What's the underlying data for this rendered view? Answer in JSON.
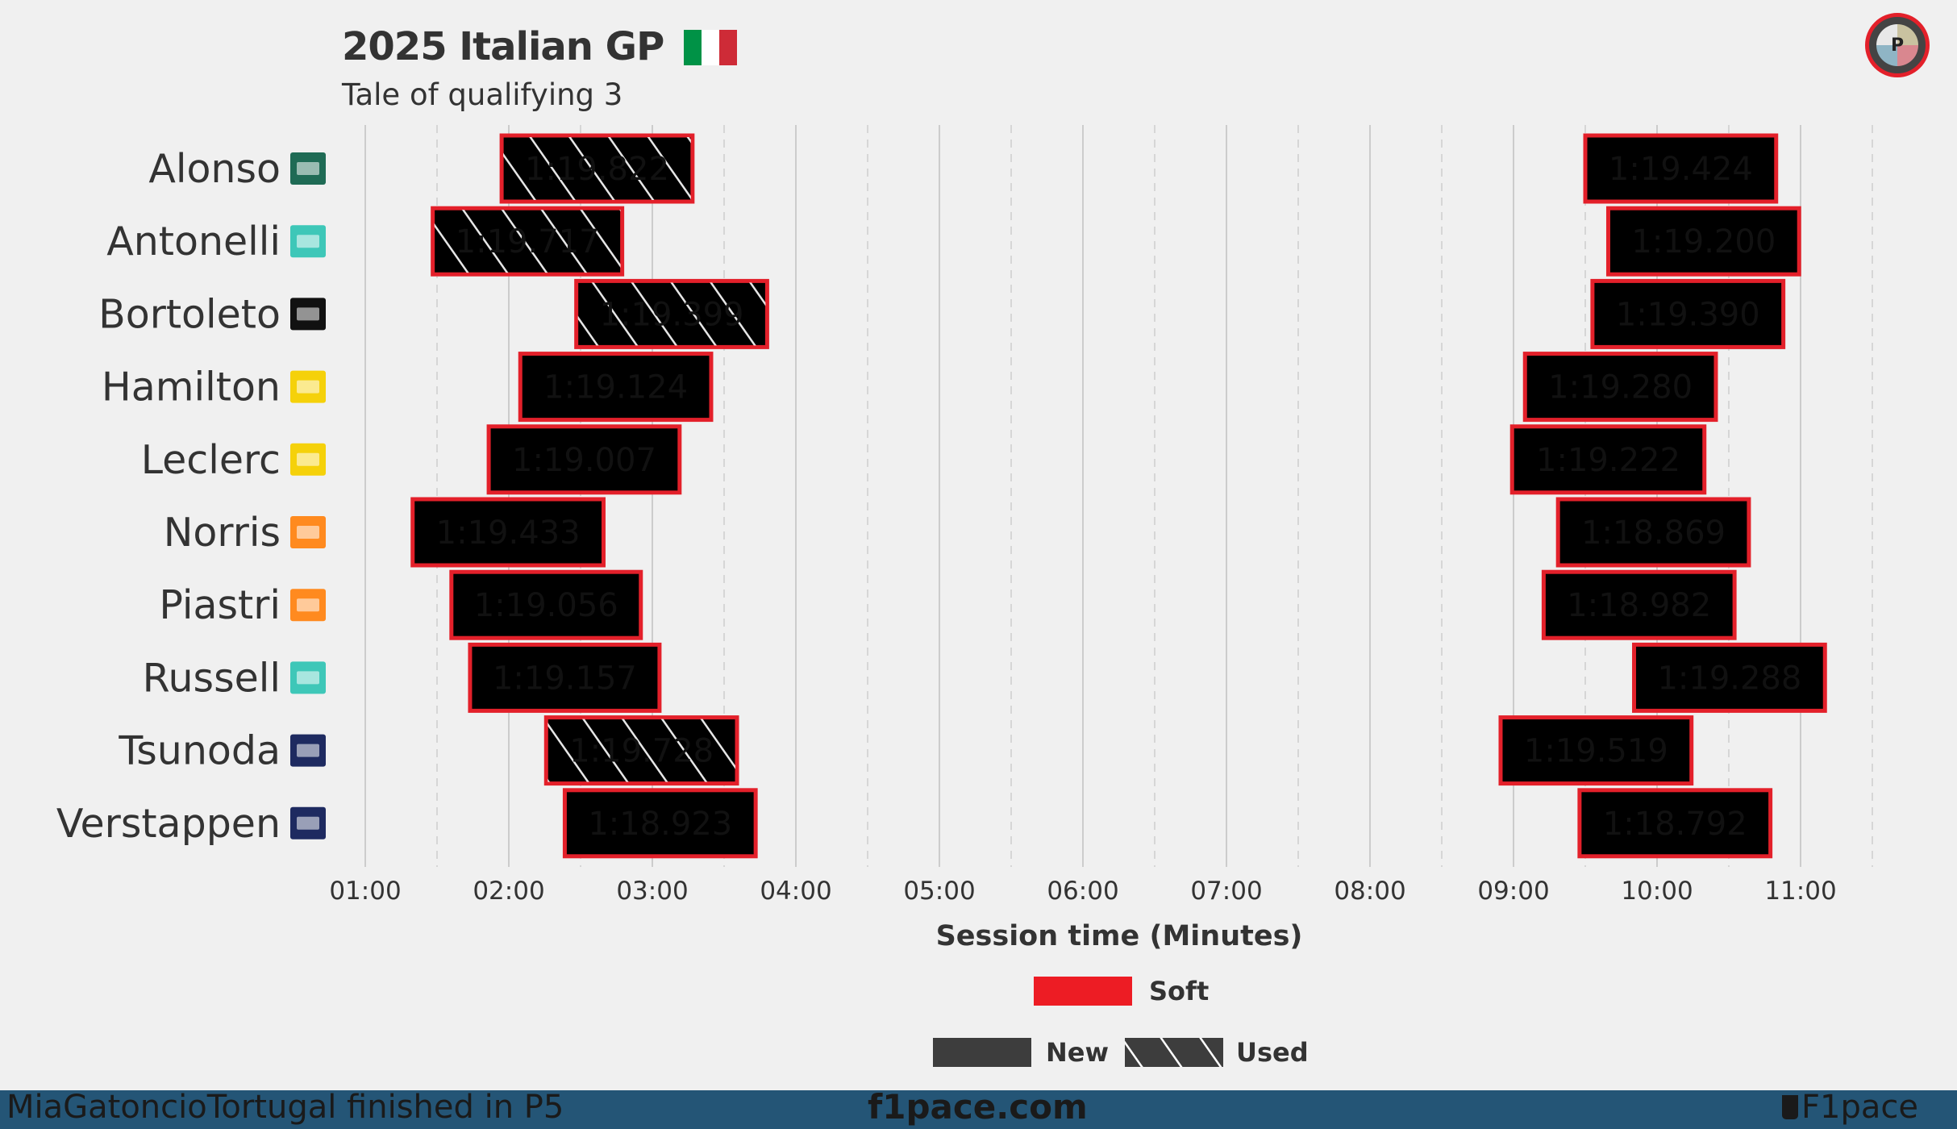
{
  "header": {
    "title": "2025 Italian GP",
    "subtitle": "Tale of qualifying 3",
    "flag_colors": [
      "#009246",
      "#ffffff",
      "#ce2b37"
    ],
    "logo_letter": "P",
    "logo_icon": "f1pace-logo-icon"
  },
  "footer": {
    "left": "MiaGatoncioTortugal finished in P5",
    "center": "f1pace.com",
    "right": "F1pace",
    "right_icon": "coffee-cup-icon",
    "bg_color": "#245576"
  },
  "chart_data": {
    "type": "bar",
    "orientation": "horizontal-timeline",
    "xlabel": "Session time (Minutes)",
    "xlim": [
      1.0,
      11.5
    ],
    "x_ticks": [
      1,
      2,
      3,
      4,
      5,
      6,
      7,
      8,
      9,
      10,
      11
    ],
    "x_tick_labels": [
      "01:00",
      "02:00",
      "03:00",
      "04:00",
      "05:00",
      "06:00",
      "07:00",
      "08:00",
      "09:00",
      "10:00",
      "11:00"
    ],
    "grid": "vertical",
    "legend": {
      "position": "bottom-center",
      "compound": [
        {
          "label": "Soft",
          "color": "#ed1c24"
        }
      ],
      "condition": [
        {
          "label": "New",
          "pattern": "solid"
        },
        {
          "label": "Used",
          "pattern": "hatched"
        }
      ]
    },
    "border_color": "#e3202a",
    "drivers": [
      {
        "name": "Alonso",
        "team_icon": "aston-martin-icon",
        "team_bg": "#1f6b55",
        "color": "#5aa38a",
        "laps": [
          {
            "start": 1.95,
            "end": 3.28,
            "time": "1:19.822",
            "tyre": "Soft",
            "used": true
          },
          {
            "start": 9.5,
            "end": 10.83,
            "time": "1:19.424",
            "tyre": "Soft",
            "used": false
          }
        ]
      },
      {
        "name": "Antonelli",
        "team_icon": "mercedes-icon",
        "team_bg": "#3ec7b8",
        "color": "#8ef0d8",
        "laps": [
          {
            "start": 1.47,
            "end": 2.79,
            "time": "1:19.717",
            "tyre": "Soft",
            "used": true
          },
          {
            "start": 9.66,
            "end": 10.99,
            "time": "1:19.200",
            "tyre": "Soft",
            "used": false
          }
        ]
      },
      {
        "name": "Bortoleto",
        "team_icon": "kick-sauber-icon",
        "team_bg": "#111111",
        "color": "#6fe85a",
        "laps": [
          {
            "start": 2.47,
            "end": 3.8,
            "time": "1:19.399",
            "tyre": "Soft",
            "used": true
          },
          {
            "start": 9.55,
            "end": 10.88,
            "time": "1:19.390",
            "tyre": "Soft",
            "used": false
          }
        ]
      },
      {
        "name": "Hamilton",
        "team_icon": "ferrari-icon",
        "team_bg": "#f5d10a",
        "color": "#ff6a72",
        "laps": [
          {
            "start": 2.08,
            "end": 3.41,
            "time": "1:19.124",
            "tyre": "Soft",
            "used": false
          },
          {
            "start": 9.08,
            "end": 10.41,
            "time": "1:19.280",
            "tyre": "Soft",
            "used": false
          }
        ]
      },
      {
        "name": "Leclerc",
        "team_icon": "ferrari-icon",
        "team_bg": "#f5d10a",
        "color": "#f2183a",
        "laps": [
          {
            "start": 1.86,
            "end": 3.19,
            "time": "1:19.007",
            "tyre": "Soft",
            "used": false
          },
          {
            "start": 8.99,
            "end": 10.33,
            "time": "1:19.222",
            "tyre": "Soft",
            "used": false
          }
        ]
      },
      {
        "name": "Norris",
        "team_icon": "mclaren-icon",
        "team_bg": "#ff8a1f",
        "color": "#ffa070",
        "laps": [
          {
            "start": 1.33,
            "end": 2.66,
            "time": "1:19.433",
            "tyre": "Soft",
            "used": false
          },
          {
            "start": 9.31,
            "end": 10.64,
            "time": "1:18.869",
            "tyre": "Soft",
            "used": false
          }
        ]
      },
      {
        "name": "Piastri",
        "team_icon": "mclaren-icon",
        "team_bg": "#ff8a1f",
        "color": "#f7821e",
        "laps": [
          {
            "start": 1.6,
            "end": 2.92,
            "time": "1:19.056",
            "tyre": "Soft",
            "used": false
          },
          {
            "start": 9.21,
            "end": 10.54,
            "time": "1:18.982",
            "tyre": "Soft",
            "used": false
          }
        ]
      },
      {
        "name": "Russell",
        "team_icon": "mercedes-icon",
        "team_bg": "#3ec7b8",
        "color": "#66d8bc",
        "laps": [
          {
            "start": 1.73,
            "end": 3.05,
            "time": "1:19.157",
            "tyre": "Soft",
            "used": false
          },
          {
            "start": 9.84,
            "end": 11.17,
            "time": "1:19.288",
            "tyre": "Soft",
            "used": false
          }
        ]
      },
      {
        "name": "Tsunoda",
        "team_icon": "red-bull-icon",
        "team_bg": "#1e2a60",
        "color": "#6a93ee",
        "laps": [
          {
            "start": 2.26,
            "end": 3.59,
            "time": "1:19.728",
            "tyre": "Soft",
            "used": true
          },
          {
            "start": 8.91,
            "end": 10.24,
            "time": "1:19.519",
            "tyre": "Soft",
            "used": false
          }
        ]
      },
      {
        "name": "Verstappen",
        "team_icon": "red-bull-icon",
        "team_bg": "#1e2a60",
        "color": "#3c6ec9",
        "laps": [
          {
            "start": 2.39,
            "end": 3.72,
            "time": "1:18.923",
            "tyre": "Soft",
            "used": false
          },
          {
            "start": 9.46,
            "end": 10.79,
            "time": "1:18.792",
            "tyre": "Soft",
            "used": false
          }
        ]
      }
    ]
  }
}
